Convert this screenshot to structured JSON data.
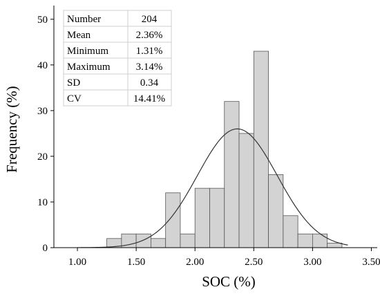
{
  "chart_data": {
    "type": "histogram",
    "xlabel": "SOC (%)",
    "ylabel": "Frequency (%)",
    "xlim": [
      0.8,
      3.55
    ],
    "ylim": [
      0,
      53
    ],
    "x_ticks": [
      "1.00",
      "1.50",
      "2.00",
      "2.50",
      "3.00",
      "3.50"
    ],
    "x_tick_values": [
      1.0,
      1.5,
      2.0,
      2.5,
      3.0,
      3.5
    ],
    "y_ticks": [
      "0",
      "10",
      "20",
      "30",
      "40",
      "50"
    ],
    "y_tick_values": [
      0,
      10,
      20,
      30,
      40,
      50
    ],
    "bin_width": 0.125,
    "bins": [
      {
        "start": 1.25,
        "value": 2
      },
      {
        "start": 1.375,
        "value": 3
      },
      {
        "start": 1.5,
        "value": 3
      },
      {
        "start": 1.625,
        "value": 2
      },
      {
        "start": 1.75,
        "value": 12
      },
      {
        "start": 1.875,
        "value": 3
      },
      {
        "start": 2.0,
        "value": 13
      },
      {
        "start": 2.125,
        "value": 13
      },
      {
        "start": 2.25,
        "value": 32
      },
      {
        "start": 2.375,
        "value": 25
      },
      {
        "start": 2.5,
        "value": 43
      },
      {
        "start": 2.625,
        "value": 16
      },
      {
        "start": 2.75,
        "value": 7
      },
      {
        "start": 2.875,
        "value": 3
      },
      {
        "start": 3.0,
        "value": 3
      },
      {
        "start": 3.125,
        "value": 1
      }
    ],
    "normal_curve": {
      "mean": 2.36,
      "sd": 0.34,
      "peak": 26
    },
    "bar_color": "#d3d3d3",
    "bar_stroke": "#555555",
    "curve_color": "#333333"
  },
  "stats_table": {
    "rows": [
      {
        "label": "Number",
        "value": "204"
      },
      {
        "label": "Mean",
        "value": "2.36%"
      },
      {
        "label": "Minimum",
        "value": "1.31%"
      },
      {
        "label": "Maximum",
        "value": "3.14%"
      },
      {
        "label": "SD",
        "value": "0.34"
      },
      {
        "label": "CV",
        "value": "14.41%"
      }
    ]
  }
}
